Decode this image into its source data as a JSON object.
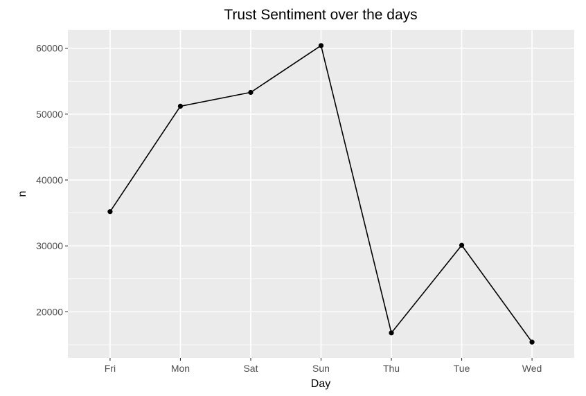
{
  "chart_data": {
    "type": "line",
    "title": "Trust Sentiment over the days",
    "xlabel": "Day",
    "ylabel": "n",
    "categories": [
      "Fri",
      "Mon",
      "Sat",
      "Sun",
      "Thu",
      "Tue",
      "Wed"
    ],
    "series": [
      {
        "values": [
          35200,
          51200,
          53300,
          60400,
          16800,
          30100,
          15400
        ]
      }
    ],
    "yticks": [
      20000,
      30000,
      40000,
      50000,
      60000
    ],
    "ylim": [
      13000,
      62800
    ],
    "grid": true,
    "colors": {
      "panel": "#ebebeb",
      "grid": "#ffffff",
      "line": "#000000",
      "point": "#000000"
    }
  }
}
